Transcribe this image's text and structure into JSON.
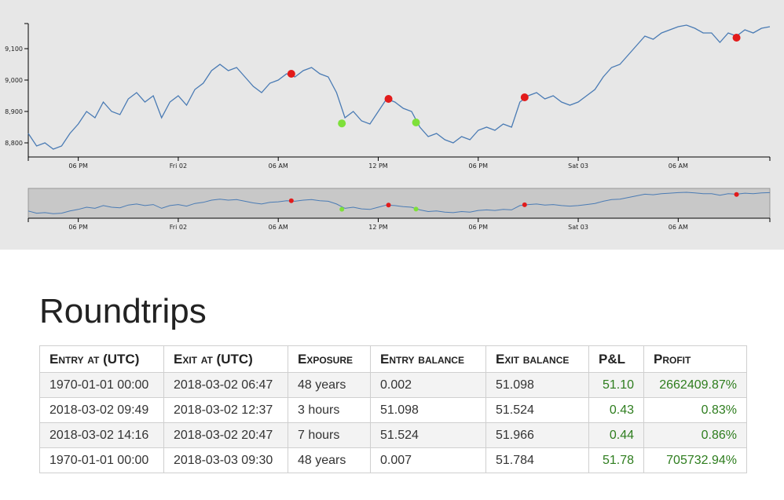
{
  "chart_data": {
    "type": "line",
    "main": {
      "y_ticks": [
        "8,800",
        "8,900",
        "9,000",
        "9,100"
      ],
      "y_tick_values": [
        8800,
        8900,
        9000,
        9100
      ],
      "ylim": [
        8755,
        9190
      ],
      "x_ticks": [
        "06 PM",
        "Fri 02",
        "06 AM",
        "12 PM",
        "06 PM",
        "Sat 03",
        "06 AM"
      ],
      "x_tick_times": [
        "2018-03-01 18:00",
        "2018-03-02 00:00",
        "2018-03-02 06:00",
        "2018-03-02 12:00",
        "2018-03-02 18:00",
        "2018-03-03 00:00",
        "2018-03-03 06:00"
      ],
      "xlim": [
        "2018-03-01 15:00",
        "2018-03-03 11:30"
      ]
    },
    "navigator": {
      "x_ticks": [
        "06 PM",
        "Fri 02",
        "06 AM",
        "12 PM",
        "06 PM",
        "Sat 03",
        "06 AM"
      ]
    },
    "series": [
      {
        "color": "#4a7bb4",
        "points": [
          [
            "2018-03-01 15:00",
            8830
          ],
          [
            "2018-03-01 15:30",
            8790
          ],
          [
            "2018-03-01 16:00",
            8800
          ],
          [
            "2018-03-01 16:30",
            8780
          ],
          [
            "2018-03-01 17:00",
            8790
          ],
          [
            "2018-03-01 17:30",
            8830
          ],
          [
            "2018-03-01 18:00",
            8860
          ],
          [
            "2018-03-01 18:30",
            8900
          ],
          [
            "2018-03-01 19:00",
            8880
          ],
          [
            "2018-03-01 19:30",
            8930
          ],
          [
            "2018-03-01 20:00",
            8900
          ],
          [
            "2018-03-01 20:30",
            8890
          ],
          [
            "2018-03-01 21:00",
            8940
          ],
          [
            "2018-03-01 21:30",
            8960
          ],
          [
            "2018-03-01 22:00",
            8930
          ],
          [
            "2018-03-01 22:30",
            8950
          ],
          [
            "2018-03-01 23:00",
            8880
          ],
          [
            "2018-03-01 23:30",
            8930
          ],
          [
            "2018-03-02 00:00",
            8950
          ],
          [
            "2018-03-02 00:30",
            8920
          ],
          [
            "2018-03-02 01:00",
            8970
          ],
          [
            "2018-03-02 01:30",
            8990
          ],
          [
            "2018-03-02 02:00",
            9030
          ],
          [
            "2018-03-02 02:30",
            9050
          ],
          [
            "2018-03-02 03:00",
            9030
          ],
          [
            "2018-03-02 03:30",
            9040
          ],
          [
            "2018-03-02 04:00",
            9010
          ],
          [
            "2018-03-02 04:30",
            8980
          ],
          [
            "2018-03-02 05:00",
            8960
          ],
          [
            "2018-03-02 05:30",
            8990
          ],
          [
            "2018-03-02 06:00",
            9000
          ],
          [
            "2018-03-02 06:30",
            9020
          ],
          [
            "2018-03-02 07:00",
            9010
          ],
          [
            "2018-03-02 07:30",
            9030
          ],
          [
            "2018-03-02 08:00",
            9040
          ],
          [
            "2018-03-02 08:30",
            9020
          ],
          [
            "2018-03-02 09:00",
            9010
          ],
          [
            "2018-03-02 09:30",
            8960
          ],
          [
            "2018-03-02 10:00",
            8880
          ],
          [
            "2018-03-02 10:30",
            8900
          ],
          [
            "2018-03-02 11:00",
            8870
          ],
          [
            "2018-03-02 11:30",
            8860
          ],
          [
            "2018-03-02 12:00",
            8900
          ],
          [
            "2018-03-02 12:30",
            8940
          ],
          [
            "2018-03-02 13:00",
            8930
          ],
          [
            "2018-03-02 13:30",
            8910
          ],
          [
            "2018-03-02 14:00",
            8900
          ],
          [
            "2018-03-02 14:30",
            8850
          ],
          [
            "2018-03-02 15:00",
            8820
          ],
          [
            "2018-03-02 15:30",
            8830
          ],
          [
            "2018-03-02 16:00",
            8810
          ],
          [
            "2018-03-02 16:30",
            8800
          ],
          [
            "2018-03-02 17:00",
            8820
          ],
          [
            "2018-03-02 17:30",
            8810
          ],
          [
            "2018-03-02 18:00",
            8840
          ],
          [
            "2018-03-02 18:30",
            8850
          ],
          [
            "2018-03-02 19:00",
            8840
          ],
          [
            "2018-03-02 19:30",
            8860
          ],
          [
            "2018-03-02 20:00",
            8850
          ],
          [
            "2018-03-02 20:30",
            8930
          ],
          [
            "2018-03-02 21:00",
            8950
          ],
          [
            "2018-03-02 21:30",
            8960
          ],
          [
            "2018-03-02 22:00",
            8940
          ],
          [
            "2018-03-02 22:30",
            8950
          ],
          [
            "2018-03-02 23:00",
            8930
          ],
          [
            "2018-03-02 23:30",
            8920
          ],
          [
            "2018-03-03 00:00",
            8930
          ],
          [
            "2018-03-03 00:30",
            8950
          ],
          [
            "2018-03-03 01:00",
            8970
          ],
          [
            "2018-03-03 01:30",
            9010
          ],
          [
            "2018-03-03 02:00",
            9040
          ],
          [
            "2018-03-03 02:30",
            9050
          ],
          [
            "2018-03-03 03:00",
            9080
          ],
          [
            "2018-03-03 03:30",
            9110
          ],
          [
            "2018-03-03 04:00",
            9140
          ],
          [
            "2018-03-03 04:30",
            9130
          ],
          [
            "2018-03-03 05:00",
            9150
          ],
          [
            "2018-03-03 05:30",
            9160
          ],
          [
            "2018-03-03 06:00",
            9170
          ],
          [
            "2018-03-03 06:30",
            9175
          ],
          [
            "2018-03-03 07:00",
            9165
          ],
          [
            "2018-03-03 07:30",
            9150
          ],
          [
            "2018-03-03 08:00",
            9150
          ],
          [
            "2018-03-03 08:30",
            9120
          ],
          [
            "2018-03-03 09:00",
            9150
          ],
          [
            "2018-03-03 09:30",
            9140
          ],
          [
            "2018-03-03 10:00",
            9160
          ],
          [
            "2018-03-03 10:30",
            9150
          ],
          [
            "2018-03-03 11:00",
            9165
          ],
          [
            "2018-03-03 11:30",
            9170
          ]
        ]
      }
    ],
    "trades": [
      {
        "time": "2018-03-02 06:47",
        "price": 9020,
        "side": "sell",
        "color": "#e21b1b"
      },
      {
        "time": "2018-03-02 09:49",
        "price": 8862,
        "side": "buy",
        "color": "#7ee03a"
      },
      {
        "time": "2018-03-02 12:37",
        "price": 8940,
        "side": "sell",
        "color": "#e21b1b"
      },
      {
        "time": "2018-03-02 14:16",
        "price": 8865,
        "side": "buy",
        "color": "#7ee03a"
      },
      {
        "time": "2018-03-02 20:47",
        "price": 8945,
        "side": "sell",
        "color": "#e21b1b"
      },
      {
        "time": "2018-03-03 09:30",
        "price": 9135,
        "side": "sell",
        "color": "#e21b1b"
      }
    ]
  },
  "roundtrips": {
    "title": "Roundtrips",
    "columns": [
      "Entry at (UTC)",
      "Exit at (UTC)",
      "Exposure",
      "Entry balance",
      "Exit balance",
      "P&L",
      "Profit"
    ],
    "rows": [
      [
        "1970-01-01 00:00",
        "2018-03-02 06:47",
        "48 years",
        "0.002",
        "51.098",
        "51.10",
        "2662409.87%"
      ],
      [
        "2018-03-02 09:49",
        "2018-03-02 12:37",
        "3 hours",
        "51.098",
        "51.524",
        "0.43",
        "0.83%"
      ],
      [
        "2018-03-02 14:16",
        "2018-03-02 20:47",
        "7 hours",
        "51.524",
        "51.966",
        "0.44",
        "0.86%"
      ],
      [
        "1970-01-01 00:00",
        "2018-03-03 09:30",
        "48 years",
        "0.007",
        "51.784",
        "51.78",
        "705732.94%"
      ]
    ]
  },
  "colors": {
    "line": "#4a7bb4",
    "sell_marker": "#e21b1b",
    "buy_marker": "#7ee03a",
    "profit_text": "#2e7d1e",
    "panel_bg": "#e7e7e7",
    "navigator_bg": "#c8c8c8"
  }
}
